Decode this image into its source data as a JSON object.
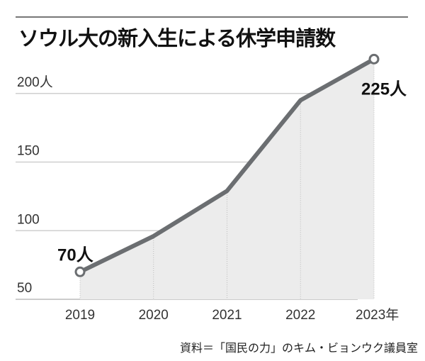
{
  "chart_data": {
    "type": "line",
    "title": "ソウル大の新入生による休学申請数",
    "categories": [
      "2019",
      "2020",
      "2021",
      "2022",
      "2023年"
    ],
    "values": [
      70,
      96,
      129,
      195,
      225
    ],
    "data_labels": [
      {
        "index": 0,
        "text": "70人"
      },
      {
        "index": 4,
        "text": "225人"
      }
    ],
    "yticks": [
      {
        "value": 50,
        "label": "50"
      },
      {
        "value": 100,
        "label": "100"
      },
      {
        "value": 150,
        "label": "150"
      },
      {
        "value": 200,
        "label": "200人"
      }
    ],
    "ylim": [
      50,
      235
    ],
    "xlabel": "",
    "ylabel": "",
    "grid": true,
    "source": "資料＝「国民の力」のキム・ビョンウク議員室",
    "colors": {
      "line": "#6b6e71",
      "fill": "#ececec",
      "grid": "#cfcfcf",
      "rule": "#777777"
    }
  }
}
